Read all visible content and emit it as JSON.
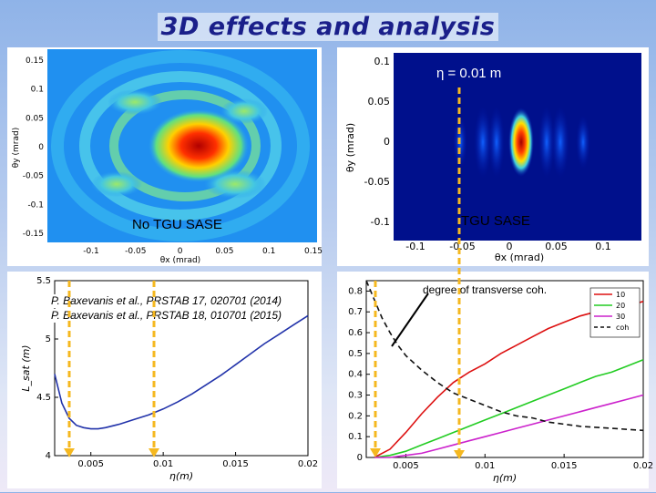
{
  "slide": {
    "title": "3D effects and analysis"
  },
  "top_left": {
    "label": "No TGU SASE",
    "x_ticks": [
      "-0.1",
      "-0.05",
      "0",
      "0.05",
      "0.1",
      "0.15"
    ],
    "y_ticks": [
      "0.15",
      "0.1",
      "0.05",
      "0",
      "-0.05",
      "-0.1",
      "-0.15"
    ],
    "xlabel": "θx (mrad)",
    "ylabel": "θy (mrad)"
  },
  "top_right": {
    "label": "TGU SASE",
    "eta_label": "η = 0.01 m",
    "x_ticks": [
      "-0.1",
      "-0.05",
      "0",
      "0.05",
      "0.1"
    ],
    "y_ticks": [
      "0.1",
      "0.05",
      "0",
      "-0.05",
      "-0.1"
    ],
    "xlabel": "θx (mrad)",
    "ylabel": "θy (mrad)"
  },
  "references": [
    "P. Baxevanis et al., PRSTAB 17, 020701 (2014)",
    "P. Baxevanis et al., PRSTAB 18, 010701 (2015)"
  ],
  "annotation": "degree of transverse coh.",
  "chart_data": [
    {
      "type": "line",
      "xlabel": "η(m)",
      "ylabel": "L_sat (m)",
      "xlim": [
        0.0025,
        0.02
      ],
      "ylim": [
        4,
        5.5
      ],
      "x_ticks": [
        "0.005",
        "0.01",
        "0.015",
        "0.02"
      ],
      "y_ticks": [
        "5.5",
        "5",
        "4.5",
        "4"
      ],
      "series": [
        {
          "color": "#2233aa",
          "x": [
            0.0025,
            0.003,
            0.0035,
            0.004,
            0.0045,
            0.005,
            0.0055,
            0.006,
            0.007,
            0.008,
            0.009,
            0.01,
            0.011,
            0.012,
            0.013,
            0.014,
            0.015,
            0.016,
            0.017,
            0.018,
            0.019,
            0.02
          ],
          "y": [
            4.7,
            4.45,
            4.32,
            4.26,
            4.24,
            4.23,
            4.23,
            4.24,
            4.27,
            4.31,
            4.35,
            4.4,
            4.46,
            4.53,
            4.61,
            4.69,
            4.78,
            4.87,
            4.96,
            5.04,
            5.12,
            5.2
          ]
        }
      ]
    },
    {
      "type": "line",
      "xlabel": "η(m)",
      "ylabel": "",
      "xlim": [
        0.0025,
        0.02
      ],
      "ylim": [
        0,
        0.85
      ],
      "x_ticks": [
        "0.005",
        "0.01",
        "0.015",
        "0.02"
      ],
      "y_ticks": [
        "0.8",
        "0.7",
        "0.6",
        "0.5",
        "0.4",
        "0.3",
        "0.2",
        "0.1",
        "0"
      ],
      "legend_position": "top-right",
      "series": [
        {
          "name": "10",
          "color": "#dd1111",
          "x": [
            0.003,
            0.004,
            0.005,
            0.006,
            0.007,
            0.008,
            0.009,
            0.01,
            0.011,
            0.012,
            0.013,
            0.014,
            0.015,
            0.016,
            0.017,
            0.018,
            0.019,
            0.02
          ],
          "y": [
            0.0,
            0.04,
            0.12,
            0.21,
            0.29,
            0.36,
            0.41,
            0.45,
            0.5,
            0.54,
            0.58,
            0.62,
            0.65,
            0.68,
            0.7,
            0.72,
            0.73,
            0.75
          ]
        },
        {
          "name": "20",
          "color": "#22cc22",
          "x": [
            0.003,
            0.004,
            0.005,
            0.006,
            0.007,
            0.008,
            0.009,
            0.01,
            0.011,
            0.012,
            0.013,
            0.014,
            0.015,
            0.016,
            0.017,
            0.018,
            0.019,
            0.02
          ],
          "y": [
            0.0,
            0.01,
            0.03,
            0.06,
            0.09,
            0.12,
            0.15,
            0.18,
            0.21,
            0.24,
            0.27,
            0.3,
            0.33,
            0.36,
            0.39,
            0.41,
            0.44,
            0.47
          ]
        },
        {
          "name": "30",
          "color": "#cc22cc",
          "x": [
            0.003,
            0.004,
            0.005,
            0.006,
            0.007,
            0.008,
            0.009,
            0.01,
            0.011,
            0.012,
            0.013,
            0.014,
            0.015,
            0.016,
            0.017,
            0.018,
            0.019,
            0.02
          ],
          "y": [
            0.0,
            0.0,
            0.01,
            0.02,
            0.04,
            0.06,
            0.08,
            0.1,
            0.12,
            0.14,
            0.16,
            0.18,
            0.2,
            0.22,
            0.24,
            0.26,
            0.28,
            0.3
          ]
        },
        {
          "name": "coh",
          "color": "#111111",
          "dashed": true,
          "x": [
            0.0025,
            0.003,
            0.0035,
            0.004,
            0.0045,
            0.005,
            0.006,
            0.007,
            0.008,
            0.009,
            0.01,
            0.011,
            0.012,
            0.013,
            0.014,
            0.015,
            0.016,
            0.017,
            0.018,
            0.019,
            0.02
          ],
          "y": [
            0.85,
            0.76,
            0.67,
            0.6,
            0.54,
            0.49,
            0.42,
            0.36,
            0.31,
            0.28,
            0.25,
            0.22,
            0.2,
            0.19,
            0.17,
            0.16,
            0.15,
            0.145,
            0.14,
            0.135,
            0.13
          ]
        }
      ]
    }
  ]
}
